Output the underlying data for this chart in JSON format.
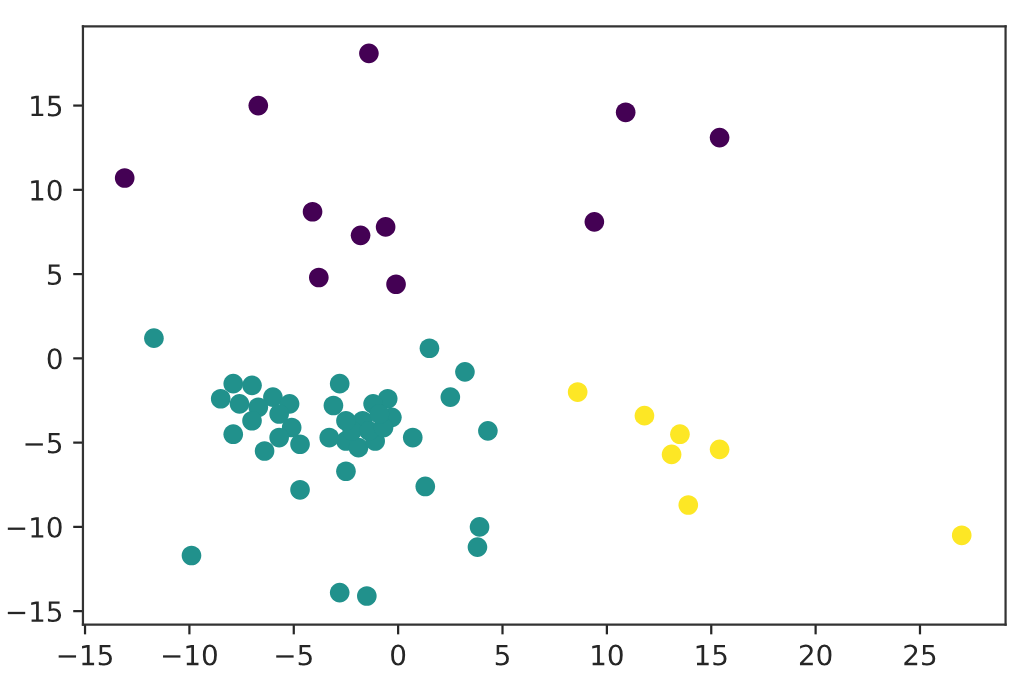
{
  "chart_data": {
    "type": "scatter",
    "marker": "circle",
    "grid": false,
    "legend": false,
    "xlim": [
      -15.1,
      29.1
    ],
    "ylim": [
      -15.8,
      19.7
    ],
    "xticks": [
      {
        "value": -15,
        "label": "−15"
      },
      {
        "value": -10,
        "label": "−10"
      },
      {
        "value": -5,
        "label": "−5"
      },
      0,
      5,
      10,
      15,
      20,
      25
    ],
    "yticks": [
      {
        "value": -15,
        "label": "−15"
      },
      {
        "value": -10,
        "label": "−10"
      },
      {
        "value": -5,
        "label": "−5"
      },
      0,
      5,
      10,
      15
    ],
    "series": [
      {
        "color": "#440154",
        "x": [
          -1.4,
          -6.7,
          -13.1,
          10.9,
          15.4,
          -4.1,
          -1.8,
          -0.6,
          9.4,
          -3.8,
          -0.1
        ],
        "values": [
          18.1,
          15.0,
          10.7,
          14.6,
          13.1,
          8.7,
          7.3,
          7.8,
          8.1,
          4.8,
          4.4
        ]
      },
      {
        "color": "#21918c",
        "x": [
          -11.7,
          1.5,
          3.2,
          2.5,
          4.3,
          0.7,
          1.3,
          -4.7,
          -2.5,
          -9.9,
          3.9,
          3.8,
          -2.8,
          -1.5,
          -2.8,
          -7.9,
          -7.0,
          -8.5,
          -6.0,
          -7.9,
          -6.4,
          -4.7,
          -5.2,
          -5.1,
          -5.7,
          -6.7,
          -7.0,
          -5.7,
          -7.6,
          -3.1,
          -2.5,
          -1.9,
          -1.1,
          -0.5,
          -1.2,
          -0.3,
          -1.7,
          -2.2,
          -1.4,
          -0.7,
          -2.5,
          -0.9,
          -3.3
        ],
        "values": [
          1.2,
          0.6,
          -0.8,
          -2.3,
          -4.3,
          -4.7,
          -7.6,
          -7.8,
          -6.7,
          -11.7,
          -10.0,
          -11.2,
          -13.9,
          -14.1,
          -1.5,
          -1.5,
          -1.6,
          -2.4,
          -2.3,
          -4.5,
          -5.5,
          -5.1,
          -2.7,
          -4.1,
          -3.3,
          -2.9,
          -3.7,
          -4.7,
          -2.7,
          -2.8,
          -4.9,
          -5.3,
          -4.9,
          -2.4,
          -2.7,
          -3.5,
          -3.7,
          -4.3,
          -4.3,
          -4.1,
          -3.7,
          -3.3,
          -4.7
        ]
      },
      {
        "color": "#fde725",
        "x": [
          8.6,
          11.8,
          13.5,
          13.1,
          15.4,
          13.9,
          27.0
        ],
        "values": [
          -2.0,
          -3.4,
          -4.5,
          -5.7,
          -5.4,
          -8.7,
          -10.5
        ]
      }
    ]
  }
}
